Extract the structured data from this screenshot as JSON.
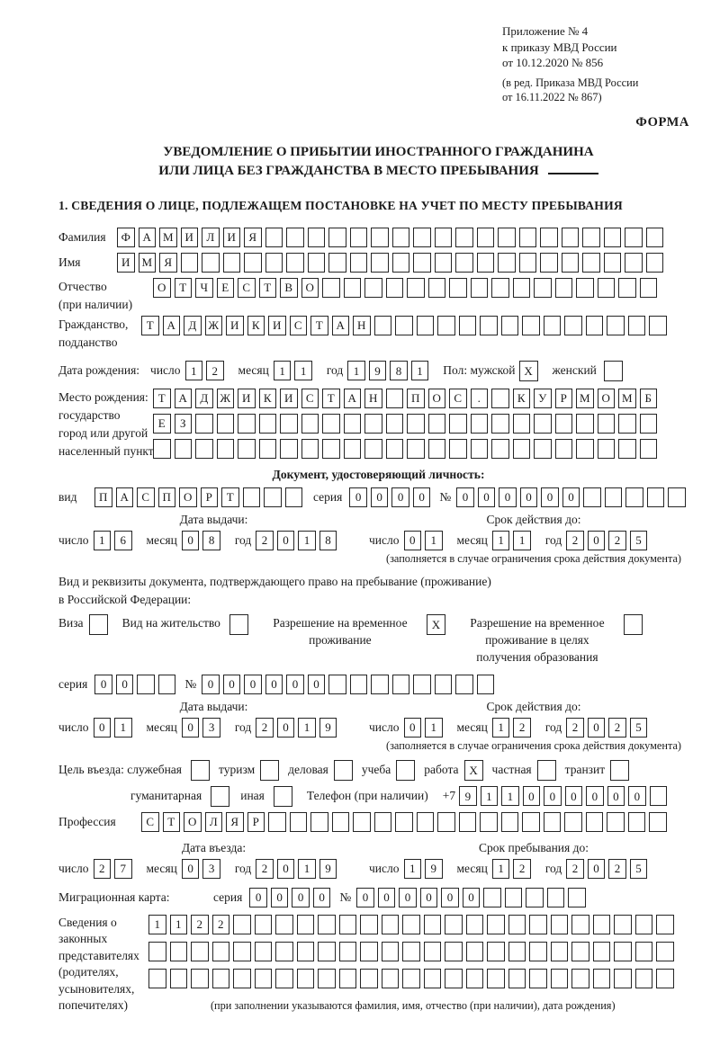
{
  "colors": {
    "ink": "#1b1b1b",
    "paper": "#ffffff"
  },
  "page": {
    "appendix": [
      "Приложение № 4",
      "к приказу МВД России",
      "от 10.12.2020 № 856"
    ],
    "edition": [
      "(в ред. Приказа МВД России",
      "от 16.11.2022 № 867)"
    ],
    "form_label": "ФОРМА",
    "title1": "УВЕДОМЛЕНИЕ О ПРИБЫТИИ ИНОСТРАННОГО ГРАЖДАНИНА",
    "title2": "ИЛИ ЛИЦА БЕЗ ГРАЖДАНСТВА В МЕСТО ПРЕБЫВАНИЯ",
    "section1": "1. СВЕДЕНИЯ О ЛИЦЕ, ПОДЛЕЖАЩЕМ ПОСТАНОВКЕ НА УЧЕТ ПО МЕСТУ ПРЕБЫВАНИЯ"
  },
  "labels": {
    "surname": "Фамилия",
    "name": "Имя",
    "patronymic": "Отчество",
    "patronymic2": "(при наличии)",
    "citizenship": "Гражданство,",
    "citizenship2": "подданство",
    "birth_date": "Дата рождения:",
    "day": "число",
    "month": "месяц",
    "year": "год",
    "sex_male": "Пол: мужской",
    "sex_female": "женский",
    "birth_place1": "Место рождения:",
    "birth_place2": "государство",
    "birth_place3": "город или другой",
    "birth_place4": "населенный пункт",
    "identity_doc": "Документ, удостоверяющий личность:",
    "doc_type": "вид",
    "series": "серия",
    "number": "№",
    "issue_date": "Дата выдачи:",
    "valid_until": "Срок действия до:",
    "valid_note": "(заполняется в случае ограничения срока действия документа)",
    "residence_doc1": "Вид и реквизиты документа, подтверждающего право на пребывание (проживание)",
    "residence_doc2": "в Российской Федерации:",
    "visa": "Виза",
    "residence_permit": "Вид на жительство",
    "temp_residence": "Разрешение на временное проживание",
    "temp_residence_edu": "Разрешение на временное проживание в целях получения образования",
    "purpose": "Цель въезда: служебная",
    "tourism": "туризм",
    "business": "деловая",
    "study": "учеба",
    "work": "работа",
    "private": "частная",
    "transit": "транзит",
    "humanitarian": "гуманитарная",
    "other": "иная",
    "phone": "Телефон (при наличии)",
    "phone_prefix": "+7",
    "profession": "Профессия",
    "entry_date": "Дата въезда:",
    "stay_until": "Срок пребывания до:",
    "migration_card": "Миграционная карта:",
    "representatives": [
      "Сведения о",
      "законных",
      "представителях",
      "(родителях,",
      "усыновителях,",
      "попечителях)"
    ],
    "representatives_note": "(при заполнении указываются фамилия, имя, отчество (при наличии), дата рождения)"
  },
  "values": {
    "surname": "ФАМИЛИЯ",
    "name": "ИМЯ",
    "patronymic": "ОТЧЕСТВО",
    "citizenship": "ТАДЖИКИСТАН",
    "birth_day": "12",
    "birth_month": "11",
    "birth_year": "1981",
    "sex_male": "X",
    "sex_female": "",
    "birth_place_row1": "ТАДЖИКИСТАН ПОС. КУРМОМБ",
    "birth_place_row2": "ЕЗ",
    "birth_place_row3": "",
    "doc_type": "ПАСПОРТ",
    "doc_series": "0000",
    "doc_number": "000000",
    "doc_issue_day": "16",
    "doc_issue_month": "08",
    "doc_issue_year": "2018",
    "doc_valid_day": "01",
    "doc_valid_month": "11",
    "doc_valid_year": "2025",
    "visa": "",
    "residence_permit": "",
    "temp_residence": "X",
    "temp_residence_edu": "",
    "res_series": "00",
    "res_number": "000000",
    "res_issue_day": "01",
    "res_issue_month": "03",
    "res_issue_year": "2019",
    "res_valid_day": "01",
    "res_valid_month": "12",
    "res_valid_year": "2025",
    "purpose_official": "",
    "purpose_tourism": "",
    "purpose_business": "",
    "purpose_study": "",
    "purpose_work": "X",
    "purpose_private": "",
    "purpose_transit": "",
    "purpose_humanitarian": "",
    "purpose_other": "",
    "phone": "911000000",
    "profession": "СТОЛЯР",
    "entry_day": "27",
    "entry_month": "03",
    "entry_year": "2019",
    "stay_day": "19",
    "stay_month": "12",
    "stay_year": "2025",
    "mig_series": "0000",
    "mig_number": "000000",
    "rep_row1": "1122",
    "rep_row2": "",
    "rep_row3": ""
  }
}
